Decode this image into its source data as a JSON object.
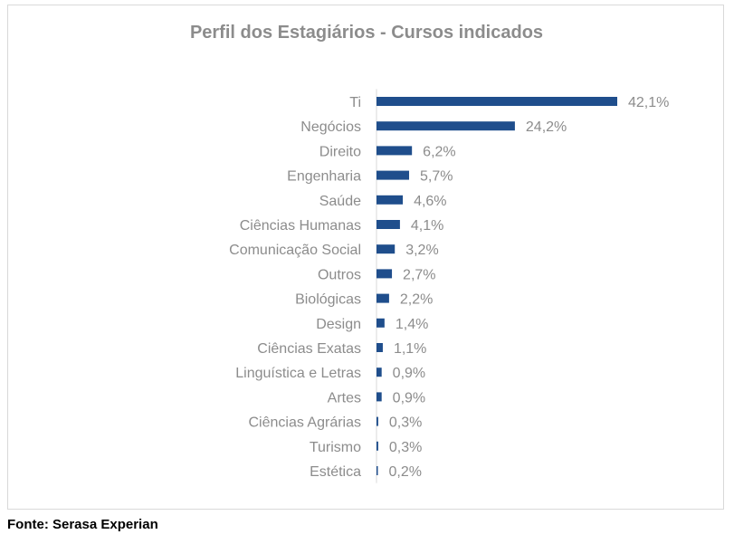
{
  "chart_data": {
    "type": "bar",
    "orientation": "horizontal",
    "title": "Perfil dos Estagiários - Cursos indicados",
    "categories": [
      "Ti",
      "Negócios",
      "Direito",
      "Engenharia",
      "Saúde",
      "Ciências Humanas",
      "Comunicação Social",
      "Outros",
      "Biológicas",
      "Design",
      "Ciências Exatas",
      "Linguística e Letras",
      "Artes",
      "Ciências Agrárias",
      "Turismo",
      "Estética"
    ],
    "values": [
      42.1,
      24.2,
      6.2,
      5.7,
      4.6,
      4.1,
      3.2,
      2.7,
      2.2,
      1.4,
      1.1,
      0.9,
      0.9,
      0.3,
      0.3,
      0.2
    ],
    "data_labels": [
      "42,1%",
      "24,2%",
      "6,2%",
      "5,7%",
      "4,6%",
      "4,1%",
      "3,2%",
      "2,7%",
      "2,2%",
      "1,4%",
      "1,1%",
      "0,9%",
      "0,9%",
      "0,3%",
      "0,3%",
      "0,2%"
    ],
    "xlabel": "",
    "ylabel": "",
    "grid": false,
    "legend": "none",
    "colors": {
      "bar": "#1f4e8c",
      "label": "#8c8c8c",
      "axis": "#d9d9d9"
    }
  },
  "source": "Fonte: Serasa Experian"
}
